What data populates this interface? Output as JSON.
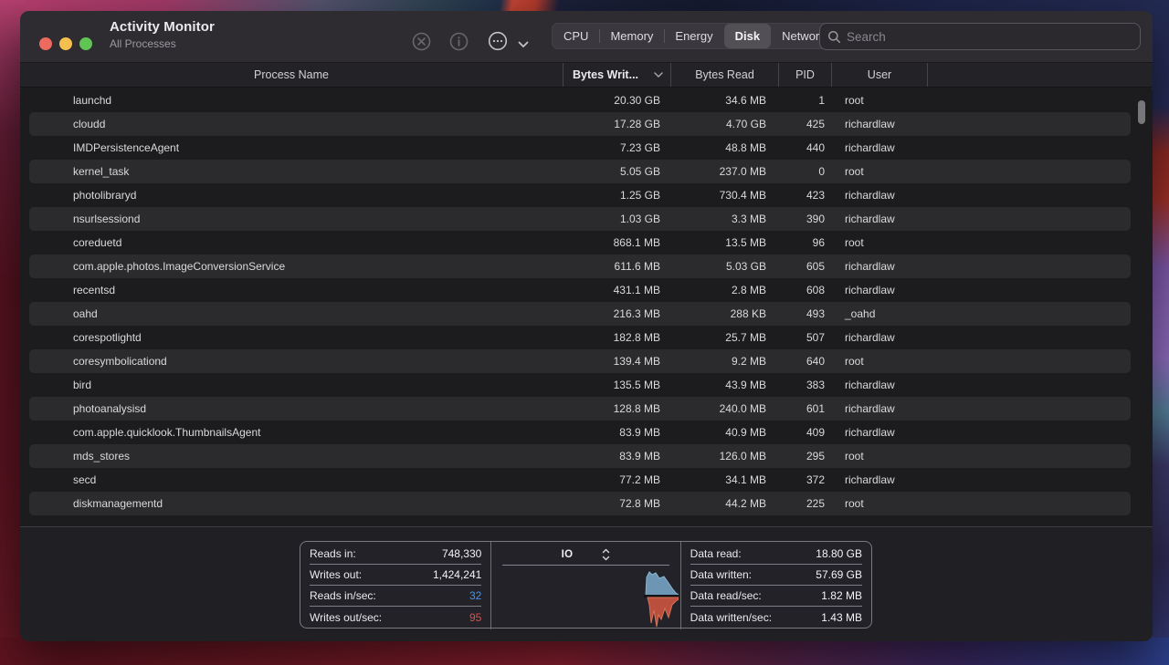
{
  "window": {
    "title": "Activity Monitor",
    "subtitle": "All Processes"
  },
  "toolbar": {
    "tabs": [
      {
        "label": "CPU",
        "selected": false
      },
      {
        "label": "Memory",
        "selected": false
      },
      {
        "label": "Energy",
        "selected": false
      },
      {
        "label": "Disk",
        "selected": true
      },
      {
        "label": "Network",
        "selected": false
      }
    ],
    "search": {
      "placeholder": "Search"
    }
  },
  "table": {
    "columns": {
      "name": "Process Name",
      "written": "Bytes Writ...",
      "read": "Bytes Read",
      "pid": "PID",
      "user": "User"
    },
    "sort_column": "written",
    "rows": [
      {
        "name": "launchd",
        "written": "20.30 GB",
        "read": "34.6 MB",
        "pid": "1",
        "user": "root"
      },
      {
        "name": "cloudd",
        "written": "17.28 GB",
        "read": "4.70 GB",
        "pid": "425",
        "user": "richardlaw"
      },
      {
        "name": "IMDPersistenceAgent",
        "written": "7.23 GB",
        "read": "48.8 MB",
        "pid": "440",
        "user": "richardlaw"
      },
      {
        "name": "kernel_task",
        "written": "5.05 GB",
        "read": "237.0 MB",
        "pid": "0",
        "user": "root"
      },
      {
        "name": "photolibraryd",
        "written": "1.25 GB",
        "read": "730.4 MB",
        "pid": "423",
        "user": "richardlaw"
      },
      {
        "name": "nsurlsessiond",
        "written": "1.03 GB",
        "read": "3.3 MB",
        "pid": "390",
        "user": "richardlaw"
      },
      {
        "name": "coreduetd",
        "written": "868.1 MB",
        "read": "13.5 MB",
        "pid": "96",
        "user": "root"
      },
      {
        "name": "com.apple.photos.ImageConversionService",
        "written": "611.6 MB",
        "read": "5.03 GB",
        "pid": "605",
        "user": "richardlaw"
      },
      {
        "name": "recentsd",
        "written": "431.1 MB",
        "read": "2.8 MB",
        "pid": "608",
        "user": "richardlaw"
      },
      {
        "name": "oahd",
        "written": "216.3 MB",
        "read": "288 KB",
        "pid": "493",
        "user": "_oahd"
      },
      {
        "name": "corespotlightd",
        "written": "182.8 MB",
        "read": "25.7 MB",
        "pid": "507",
        "user": "richardlaw"
      },
      {
        "name": "coresymbolicationd",
        "written": "139.4 MB",
        "read": "9.2 MB",
        "pid": "640",
        "user": "root"
      },
      {
        "name": "bird",
        "written": "135.5 MB",
        "read": "43.9 MB",
        "pid": "383",
        "user": "richardlaw"
      },
      {
        "name": "photoanalysisd",
        "written": "128.8 MB",
        "read": "240.0 MB",
        "pid": "601",
        "user": "richardlaw"
      },
      {
        "name": "com.apple.quicklook.ThumbnailsAgent",
        "written": "83.9 MB",
        "read": "40.9 MB",
        "pid": "409",
        "user": "richardlaw"
      },
      {
        "name": "mds_stores",
        "written": "83.9 MB",
        "read": "126.0 MB",
        "pid": "295",
        "user": "root"
      },
      {
        "name": "secd",
        "written": "77.2 MB",
        "read": "34.1 MB",
        "pid": "372",
        "user": "richardlaw"
      },
      {
        "name": "diskmanagementd",
        "written": "72.8 MB",
        "read": "44.2 MB",
        "pid": "225",
        "user": "root"
      }
    ]
  },
  "footer": {
    "io_stats_left": [
      {
        "label": "Reads in:",
        "value": "748,330"
      },
      {
        "label": "Writes out:",
        "value": "1,424,241"
      },
      {
        "label": "Reads in/sec:",
        "value": "32",
        "color": "blue"
      },
      {
        "label": "Writes out/sec:",
        "value": "95",
        "color": "red"
      }
    ],
    "chart_selector": "IO",
    "io_stats_right": [
      {
        "label": "Data read:",
        "value": "18.80 GB"
      },
      {
        "label": "Data written:",
        "value": "57.69 GB"
      },
      {
        "label": "Data read/sec:",
        "value": "1.82 MB"
      },
      {
        "label": "Data written/sec:",
        "value": "1.43 MB"
      }
    ]
  },
  "colors": {
    "accent_blue": "#4a95e8",
    "accent_red": "#d4544a",
    "chart_blue": "#6d96b4",
    "chart_blue_stroke": "#8db4d0",
    "chart_red": "#bb4f3d",
    "chart_red_stroke": "#d8735a",
    "traffic_red": "#ed6a5e",
    "traffic_yellow": "#f4bf4f",
    "traffic_green": "#61c554"
  }
}
